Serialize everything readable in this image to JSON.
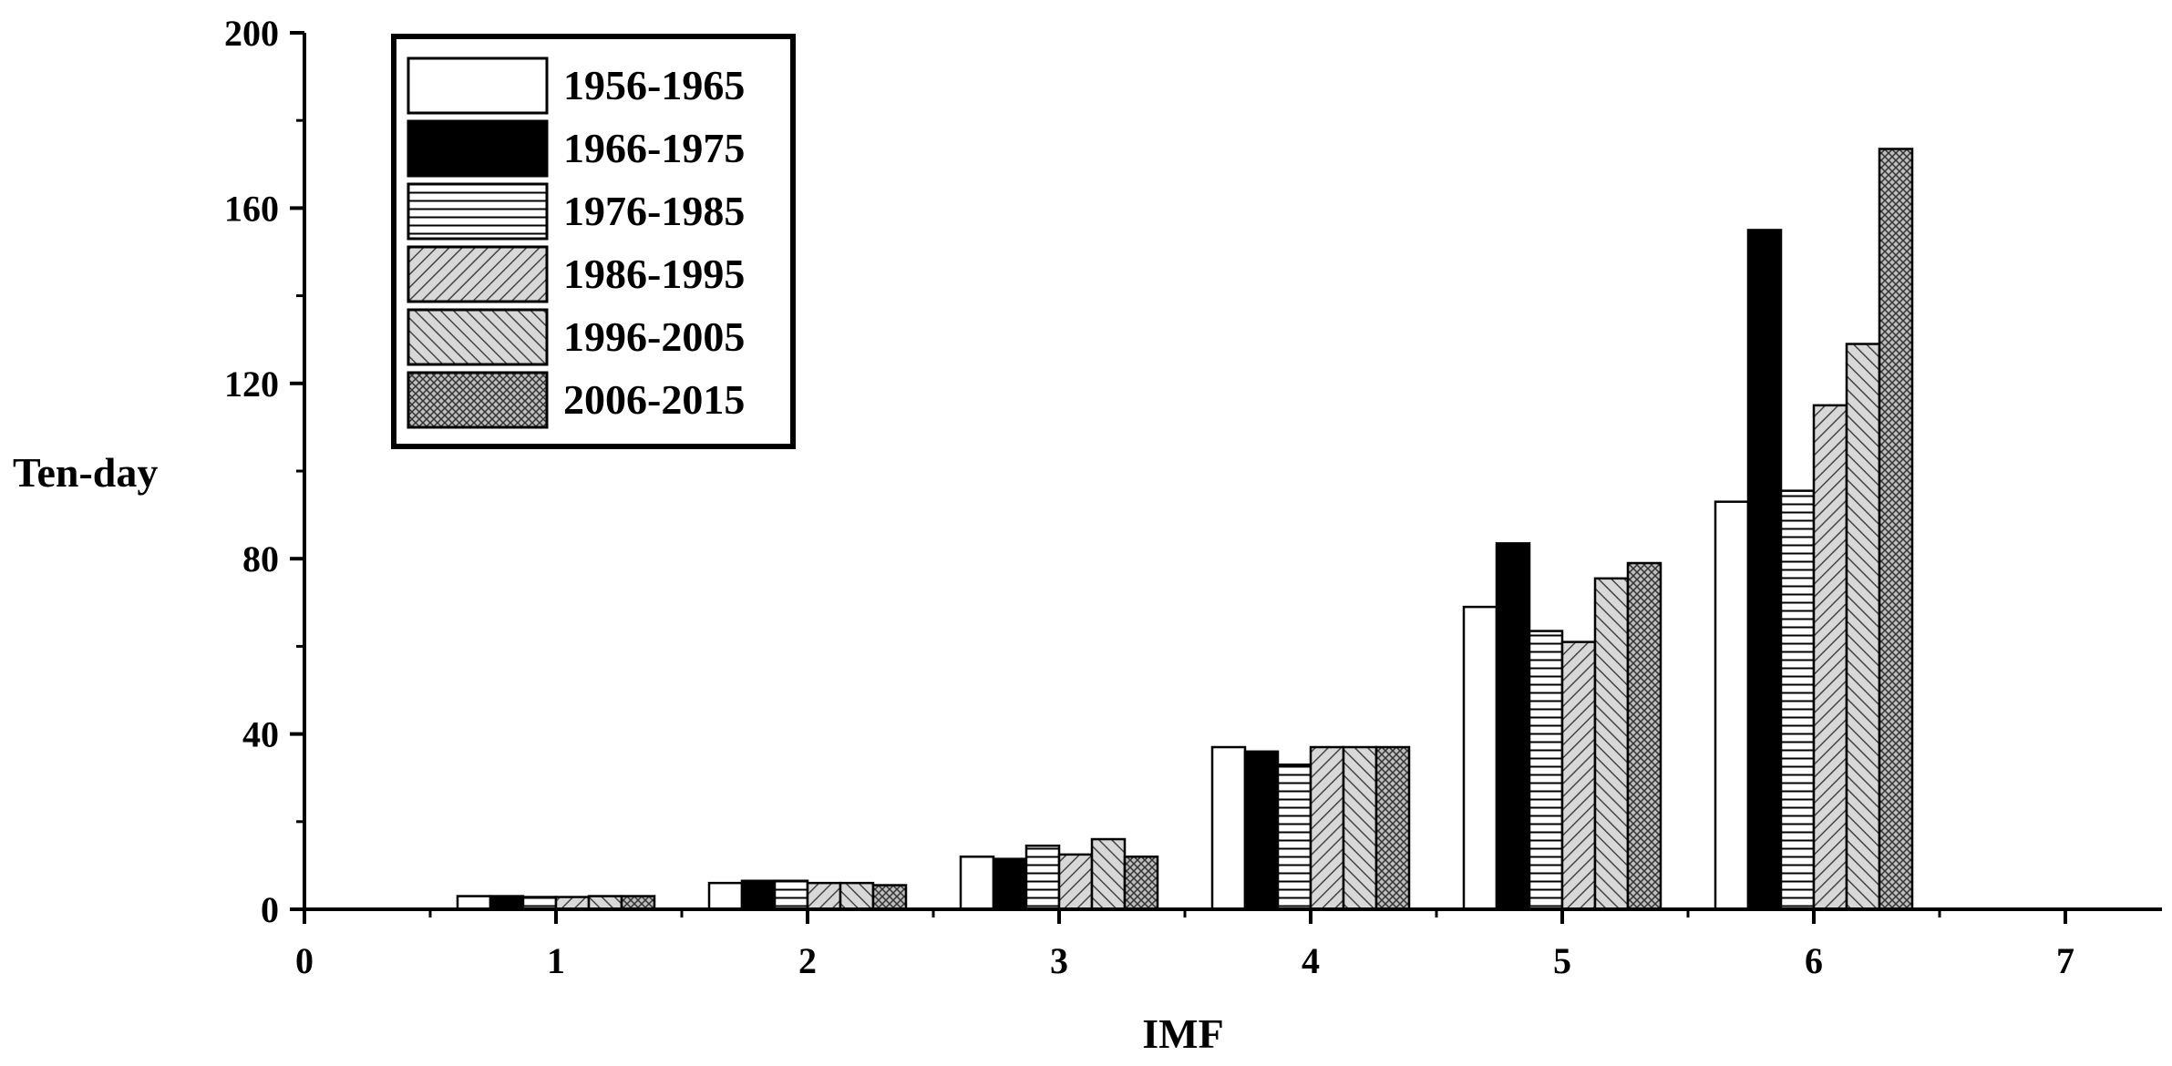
{
  "chart_data": {
    "type": "bar",
    "title": "",
    "xlabel": "IMF",
    "ylabel": "Ten-day",
    "xlim": [
      0,
      7.4
    ],
    "ylim": [
      0,
      200
    ],
    "x_ticks": [
      "0",
      "1",
      "2",
      "3",
      "4",
      "5",
      "6",
      "7"
    ],
    "y_ticks": [
      "0",
      "40",
      "80",
      "120",
      "160",
      "200"
    ],
    "categories": [
      1,
      2,
      3,
      4,
      5,
      6
    ],
    "series": [
      {
        "name": "1956-1965",
        "fill": "white",
        "values": [
          3,
          6,
          12,
          37,
          69,
          93
        ]
      },
      {
        "name": "1966-1975",
        "fill": "black",
        "values": [
          3,
          6.5,
          11.5,
          36,
          83.5,
          155
        ]
      },
      {
        "name": "1976-1985",
        "fill": "hlines",
        "values": [
          2.8,
          6.5,
          14.5,
          33,
          63.5,
          95.5
        ]
      },
      {
        "name": "1986-1995",
        "fill": "diag",
        "values": [
          2.8,
          6,
          12.5,
          37,
          61,
          115
        ]
      },
      {
        "name": "1996-2005",
        "fill": "backdiag",
        "values": [
          3,
          6,
          16,
          37,
          75.5,
          129
        ]
      },
      {
        "name": "2006-2015",
        "fill": "cross",
        "values": [
          3,
          5.5,
          12,
          37,
          79,
          173.5
        ]
      }
    ],
    "legend": "top-left",
    "grid": false,
    "colors": {
      "axis": "#000000",
      "bar_outline": "#000000",
      "hatch_bg": "#d8d8d8",
      "solid": "#000000",
      "empty": "#ffffff"
    }
  }
}
